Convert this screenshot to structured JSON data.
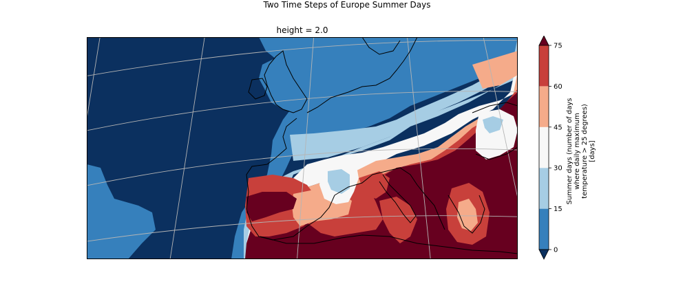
{
  "figure": {
    "title": "Two Time Steps of Europe Summer Days",
    "subplot_title": "height = 2.0"
  },
  "colorbar": {
    "label_lines": [
      "Summer days (number of days",
      "where daily maximum",
      "temperature > 25 degrees)",
      "[days]"
    ],
    "ticks": [
      "0",
      "15",
      "30",
      "45",
      "60",
      "75"
    ],
    "bins": [
      {
        "range": "<0",
        "color": "#0b305f"
      },
      {
        "range": "0-15",
        "color": "#3680bc"
      },
      {
        "range": "15-30",
        "color": "#a6cde4"
      },
      {
        "range": "30-45",
        "color": "#f7f7f7"
      },
      {
        "range": "45-60",
        "color": "#f5ab8a"
      },
      {
        "range": "60-75",
        "color": "#c8403b"
      },
      {
        "range": ">75",
        "color": "#67001f"
      }
    ],
    "extend": "both"
  },
  "map": {
    "colors": {
      "deep": "#0b305f",
      "blue": "#3680bc",
      "lightblue": "#a6cde4",
      "white": "#f7f7f7",
      "salmon": "#f5ab8a",
      "red": "#c8403b",
      "darkred": "#67001f",
      "grid": "#b5b5b5",
      "coast": "#000000"
    }
  }
}
